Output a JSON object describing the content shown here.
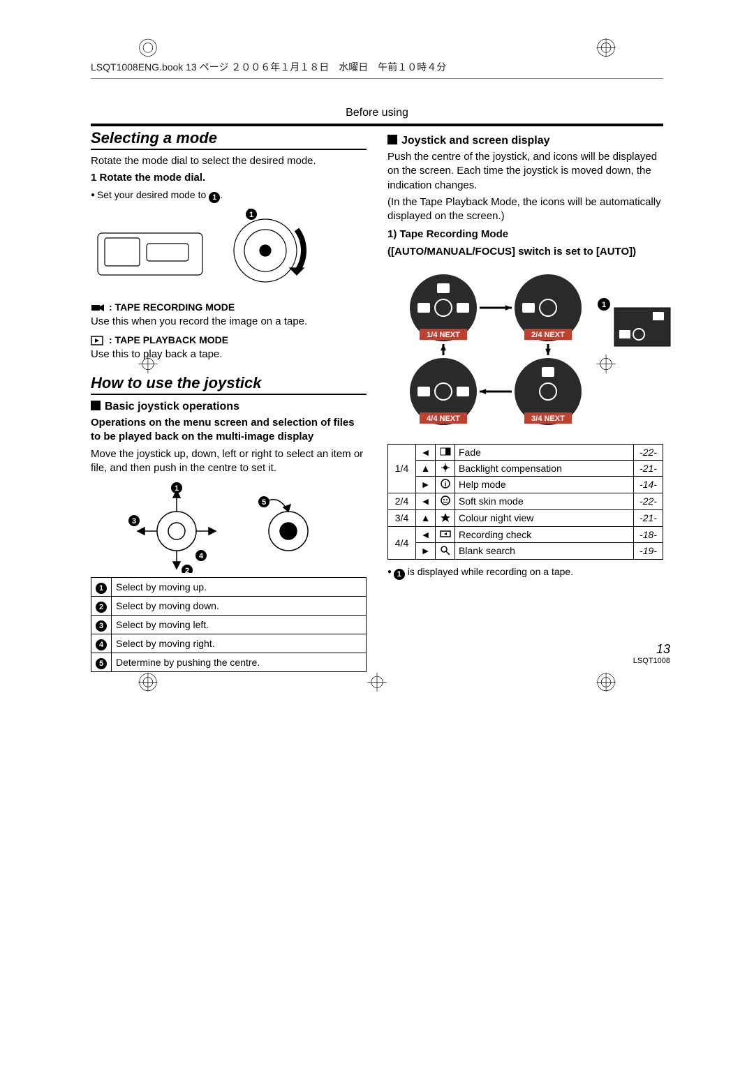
{
  "header": {
    "bookinfo": "LSQT1008ENG.book  13 ページ  ２００６年１月１８日　水曜日　午前１０時４分"
  },
  "before_using": "Before using",
  "left": {
    "title1": "Selecting a mode",
    "rotate_intro": "Rotate the mode dial to select the desired mode.",
    "step1": "1  Rotate the mode dial.",
    "set_desired": "Set your desired mode to ",
    "tape_rec_label": ":  TAPE RECORDING MODE",
    "tape_rec_desc": "Use this when you record the image on a tape.",
    "tape_play_label": ":  TAPE PLAYBACK MODE",
    "tape_play_desc": "Use this to play back a tape.",
    "title2": "How to use the joystick",
    "basic_ops": "Basic joystick operations",
    "basic_ops_bold": "Operations on the menu screen and selection of files to be played back on the multi-image display",
    "basic_ops_desc": "Move the joystick up, down, left or right to select an item or file, and then push in the centre to set it.",
    "ops_table": [
      {
        "n": "1",
        "t": "Select by moving up."
      },
      {
        "n": "2",
        "t": "Select by moving down."
      },
      {
        "n": "3",
        "t": "Select by moving left."
      },
      {
        "n": "4",
        "t": "Select by moving right."
      },
      {
        "n": "5",
        "t": "Determine by pushing the centre."
      }
    ]
  },
  "right": {
    "joy_screen": "Joystick and screen display",
    "joy_desc1": "Push the centre of the joystick, and icons will be displayed on the screen. Each time the joystick is moved down, the indication changes.",
    "joy_desc2": "(In the Tape Playback Mode, the icons will be automatically displayed on the screen.)",
    "tape_rec_mode": "1)  Tape Recording Mode",
    "tape_rec_mode2": "([AUTO/MANUAL/FOCUS] switch is set to [AUTO])",
    "screens": {
      "labels": [
        "1/4 NEXT",
        "2/4 NEXT",
        "3/4 NEXT",
        "4/4 NEXT"
      ],
      "label_bg": "#c04030",
      "circle_bg": "#2a2a2a"
    },
    "modes_table": [
      {
        "screen": "1/4",
        "rows": [
          {
            "dir": "◄",
            "ico": "fade",
            "name": "Fade",
            "page": "-22-"
          },
          {
            "dir": "▲",
            "ico": "backlight",
            "name": "Backlight compensation",
            "page": "-21-"
          },
          {
            "dir": "►",
            "ico": "help",
            "name": "Help mode",
            "page": "-14-"
          }
        ]
      },
      {
        "screen": "2/4",
        "rows": [
          {
            "dir": "◄",
            "ico": "softskin",
            "name": "Soft skin mode",
            "page": "-22-"
          }
        ]
      },
      {
        "screen": "3/4",
        "rows": [
          {
            "dir": "▲",
            "ico": "night",
            "name": "Colour night view",
            "page": "-21-"
          }
        ]
      },
      {
        "screen": "4/4",
        "rows": [
          {
            "dir": "◄",
            "ico": "reccheck",
            "name": "Recording check",
            "page": "-18-"
          },
          {
            "dir": "►",
            "ico": "blank",
            "name": "Blank search",
            "page": "-19-"
          }
        ]
      }
    ],
    "note": " is displayed while recording on a tape."
  },
  "footer": {
    "page": "13",
    "code": "LSQT1008"
  },
  "colors": {
    "text": "#000000",
    "red": "#c04030",
    "dark": "#2a2a2a"
  }
}
